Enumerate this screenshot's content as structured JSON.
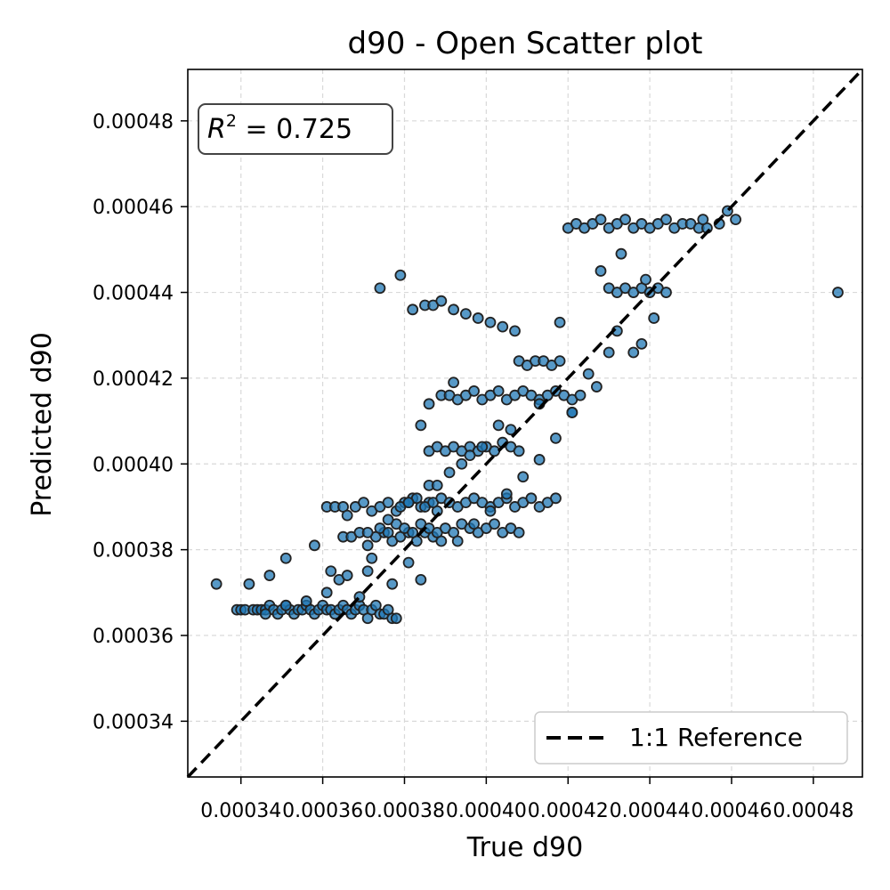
{
  "chart_data": {
    "type": "scatter",
    "title": "d90 - Open Scatter plot",
    "xlabel": "True d90",
    "ylabel": "Predicted d90",
    "xlim": [
      0.000327,
      0.000492
    ],
    "ylim": [
      0.000327,
      0.000492
    ],
    "xticks": [
      "0.00034",
      "0.00036",
      "0.00038",
      "0.00040",
      "0.00042",
      "0.00044",
      "0.00046",
      "0.00048"
    ],
    "yticks": [
      "0.00034",
      "0.00036",
      "0.00038",
      "0.00040",
      "0.00042",
      "0.00044",
      "0.00046",
      "0.00048"
    ],
    "grid": true,
    "legend": {
      "placement": "lower-right",
      "entries": [
        "1:1 Reference"
      ]
    },
    "annotation": {
      "label": "R",
      "sup": "2",
      "text": " = 0.725",
      "placement": "upper-left"
    },
    "reference_line": {
      "name": "1:1 Reference",
      "style": "dashed",
      "color": "#000000"
    },
    "marker_color": "#1f77b4",
    "marker_edge": "#222222",
    "series": [
      {
        "x": [
          0.000334,
          0.000339,
          0.00034,
          0.000341,
          0.000342,
          0.000343,
          0.000344,
          0.000345,
          0.000346,
          0.000347,
          0.000348,
          0.000349,
          0.00035,
          0.000351,
          0.000352,
          0.000353,
          0.000354,
          0.000355,
          0.000356,
          0.000357,
          0.000358,
          0.000359,
          0.00036,
          0.000361,
          0.000362,
          0.000363,
          0.000364,
          0.000365,
          0.000366,
          0.000367,
          0.000368,
          0.000369,
          0.00037,
          0.000371,
          0.000372,
          0.000373,
          0.000374,
          0.000375,
          0.000376,
          0.000377,
          0.000378,
          0.000347,
          0.000351,
          0.000358,
          0.000364,
          0.000369,
          0.000371,
          0.000377,
          0.000384,
          0.000361,
          0.000363,
          0.000365,
          0.000366,
          0.000368,
          0.00037,
          0.000372,
          0.000374,
          0.000376,
          0.000378,
          0.00038,
          0.000382,
          0.000384,
          0.000386,
          0.000388,
          0.000365,
          0.000367,
          0.000369,
          0.000371,
          0.000373,
          0.000375,
          0.000377,
          0.000379,
          0.000381,
          0.000383,
          0.000385,
          0.000387,
          0.000389,
          0.000374,
          0.000376,
          0.000378,
          0.00038,
          0.000382,
          0.000384,
          0.000386,
          0.000388,
          0.00039,
          0.000392,
          0.000394,
          0.000396,
          0.000398,
          0.0004,
          0.000402,
          0.000404,
          0.000406,
          0.000408,
          0.000379,
          0.000381,
          0.000383,
          0.000385,
          0.000387,
          0.000389,
          0.000391,
          0.000393,
          0.000395,
          0.000397,
          0.000399,
          0.000401,
          0.000403,
          0.000405,
          0.000407,
          0.000409,
          0.000411,
          0.000413,
          0.000415,
          0.000417,
          0.000386,
          0.000388,
          0.00039,
          0.000392,
          0.000394,
          0.000396,
          0.000398,
          0.0004,
          0.000402,
          0.000404,
          0.000406,
          0.000408,
          0.000389,
          0.000391,
          0.000393,
          0.000395,
          0.000397,
          0.000399,
          0.000401,
          0.000403,
          0.000405,
          0.000407,
          0.000409,
          0.000411,
          0.000413,
          0.000415,
          0.000417,
          0.000419,
          0.000421,
          0.000423,
          0.000408,
          0.00041,
          0.000412,
          0.000414,
          0.000416,
          0.000418,
          0.00042,
          0.000422,
          0.000424,
          0.000426,
          0.000428,
          0.00043,
          0.000432,
          0.000434,
          0.000436,
          0.000438,
          0.00044,
          0.000442,
          0.000444,
          0.000446,
          0.000448,
          0.00045,
          0.000452,
          0.000454,
          0.00043,
          0.000432,
          0.000434,
          0.000436,
          0.000438,
          0.00044,
          0.000442,
          0.000444,
          0.000382,
          0.000385,
          0.000387,
          0.000389,
          0.000392,
          0.000395,
          0.000398,
          0.000401,
          0.000404,
          0.000407,
          0.000379,
          0.000374,
          0.000384,
          0.000386,
          0.000392,
          0.000418,
          0.000428,
          0.000433,
          0.000438,
          0.000436,
          0.000441,
          0.000453,
          0.000457,
          0.000459,
          0.000461,
          0.000486,
          0.00043,
          0.000425,
          0.000421,
          0.000417,
          0.000413,
          0.000409,
          0.000405,
          0.000401,
          0.000397,
          0.000393,
          0.000403,
          0.000396,
          0.000391,
          0.000386,
          0.000381,
          0.000376,
          0.000371,
          0.000366,
          0.000361,
          0.000356,
          0.000351,
          0.000346,
          0.000362,
          0.000372,
          0.000381,
          0.000388,
          0.000394,
          0.000399,
          0.000406,
          0.000413,
          0.000421,
          0.000427,
          0.000432,
          0.000439
        ],
        "y": [
          0.000372,
          0.000366,
          0.000366,
          0.000366,
          0.000372,
          0.000366,
          0.000366,
          0.000366,
          0.000366,
          0.000367,
          0.000366,
          0.000365,
          0.000366,
          0.000367,
          0.000366,
          0.000365,
          0.000366,
          0.000366,
          0.000367,
          0.000366,
          0.000365,
          0.000366,
          0.000367,
          0.000366,
          0.000366,
          0.000365,
          0.000366,
          0.000367,
          0.000366,
          0.000365,
          0.000366,
          0.000367,
          0.000366,
          0.000364,
          0.000366,
          0.000367,
          0.000365,
          0.000365,
          0.000366,
          0.000364,
          0.000364,
          0.000374,
          0.000378,
          0.000381,
          0.000373,
          0.000369,
          0.000375,
          0.000372,
          0.000373,
          0.00039,
          0.00039,
          0.00039,
          0.000388,
          0.00039,
          0.000391,
          0.000389,
          0.00039,
          0.000391,
          0.000389,
          0.000391,
          0.000392,
          0.00039,
          0.000391,
          0.000389,
          0.000383,
          0.000383,
          0.000384,
          0.000381,
          0.000383,
          0.000384,
          0.000382,
          0.000383,
          0.000384,
          0.000382,
          0.000384,
          0.000383,
          0.000382,
          0.000385,
          0.000384,
          0.000386,
          0.000385,
          0.000384,
          0.000386,
          0.000385,
          0.000384,
          0.000385,
          0.000384,
          0.000386,
          0.000385,
          0.000384,
          0.000385,
          0.000386,
          0.000384,
          0.000385,
          0.000384,
          0.00039,
          0.000391,
          0.000392,
          0.00039,
          0.000391,
          0.000392,
          0.000391,
          0.00039,
          0.000391,
          0.000392,
          0.000391,
          0.00039,
          0.000391,
          0.000392,
          0.00039,
          0.000391,
          0.000392,
          0.00039,
          0.000391,
          0.000392,
          0.000403,
          0.000404,
          0.000403,
          0.000404,
          0.000403,
          0.000404,
          0.000403,
          0.000404,
          0.000403,
          0.000405,
          0.000404,
          0.000403,
          0.000416,
          0.000416,
          0.000415,
          0.000416,
          0.000417,
          0.000415,
          0.000416,
          0.000417,
          0.000415,
          0.000416,
          0.000417,
          0.000416,
          0.000415,
          0.000416,
          0.000417,
          0.000416,
          0.000415,
          0.000416,
          0.000424,
          0.000423,
          0.000424,
          0.000424,
          0.000423,
          0.000424,
          0.000455,
          0.000456,
          0.000455,
          0.000456,
          0.000457,
          0.000455,
          0.000456,
          0.000457,
          0.000455,
          0.000456,
          0.000455,
          0.000456,
          0.000457,
          0.000455,
          0.000456,
          0.000456,
          0.000455,
          0.000455,
          0.000441,
          0.00044,
          0.000441,
          0.00044,
          0.000441,
          0.00044,
          0.000441,
          0.00044,
          0.000436,
          0.000437,
          0.000437,
          0.000438,
          0.000436,
          0.000435,
          0.000434,
          0.000433,
          0.000432,
          0.000431,
          0.000444,
          0.000441,
          0.000409,
          0.000414,
          0.000419,
          0.000433,
          0.000445,
          0.000449,
          0.000428,
          0.000426,
          0.000434,
          0.000457,
          0.000456,
          0.000459,
          0.000457,
          0.00044,
          0.000426,
          0.000421,
          0.000412,
          0.000406,
          0.000401,
          0.000397,
          0.000393,
          0.000389,
          0.000386,
          0.000382,
          0.000409,
          0.000402,
          0.000398,
          0.000395,
          0.000391,
          0.000387,
          0.000384,
          0.000374,
          0.00037,
          0.000368,
          0.000367,
          0.000365,
          0.000375,
          0.000378,
          0.000377,
          0.000395,
          0.0004,
          0.000404,
          0.000408,
          0.000414,
          0.000412,
          0.000418,
          0.000431,
          0.000443
        ]
      }
    ]
  }
}
